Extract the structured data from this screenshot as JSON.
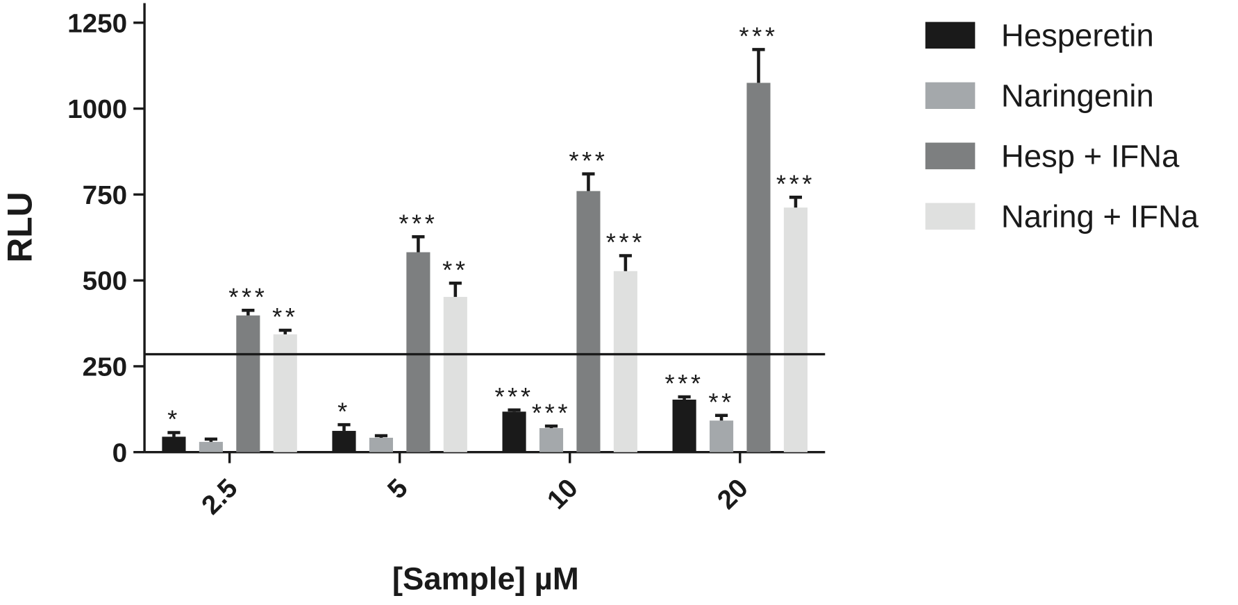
{
  "chart_data": {
    "type": "bar",
    "x_label": "[Sample] µM",
    "y_label": "RLU",
    "categories": [
      "2.5",
      "5",
      "10",
      "20"
    ],
    "series": [
      {
        "name": "Hesperetin",
        "color": "#1a1a1a",
        "values": [
          45,
          62,
          118,
          153
        ],
        "errors": [
          12,
          18,
          5,
          8
        ],
        "significance": [
          "*",
          "*",
          "***",
          "***"
        ]
      },
      {
        "name": "Naringenin",
        "color": "#a4a8ab",
        "values": [
          30,
          42,
          70,
          92
        ],
        "errors": [
          8,
          6,
          6,
          15
        ],
        "significance": [
          null,
          null,
          "***",
          "**"
        ]
      },
      {
        "name": "Hesp + IFNa",
        "color": "#7d7f80",
        "values": [
          398,
          582,
          760,
          1075
        ],
        "errors": [
          15,
          45,
          50,
          97
        ],
        "significance": [
          "***",
          "***",
          "***",
          "***"
        ]
      },
      {
        "name": "Naring + IFNa",
        "color": "#dfe0df",
        "values": [
          343,
          452,
          527,
          712
        ],
        "errors": [
          12,
          40,
          45,
          30
        ],
        "significance": [
          "**",
          "**",
          "***",
          "***"
        ]
      }
    ],
    "reference_line": 285,
    "ylim": [
      0,
      1250
    ],
    "yticks": [
      0,
      250,
      500,
      750,
      1000,
      1250
    ]
  }
}
